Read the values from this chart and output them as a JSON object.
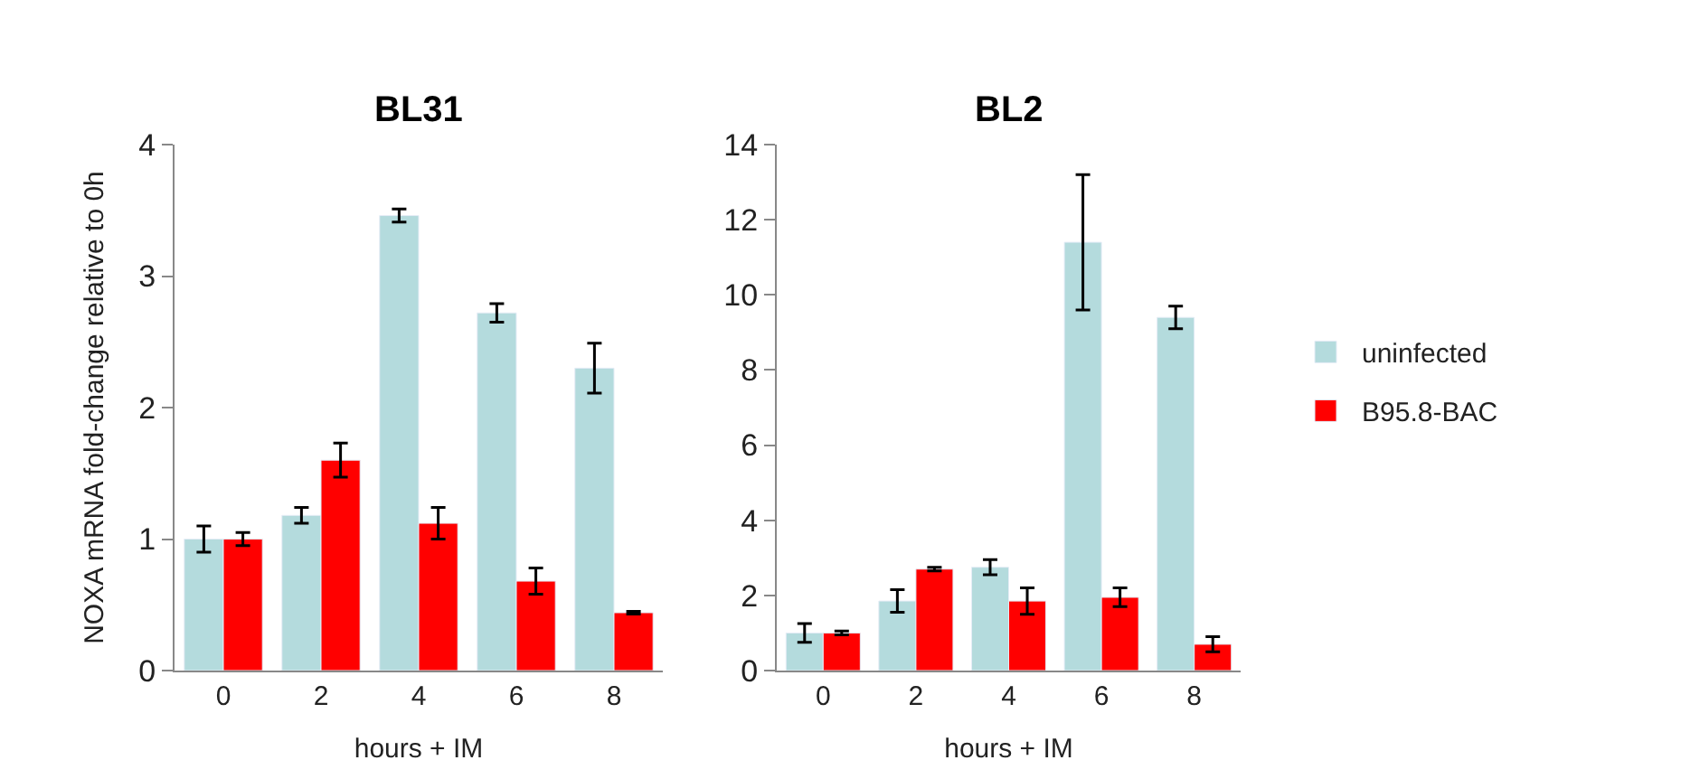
{
  "chart_data": [
    {
      "type": "bar",
      "title": "BL31",
      "xlabel": "hours + IM",
      "ylabel": "NOXA mRNA fold-change relative to 0h",
      "categories": [
        "0",
        "2",
        "4",
        "6",
        "8"
      ],
      "ylim": [
        0,
        4
      ],
      "yticks": [
        0,
        1,
        2,
        3,
        4
      ],
      "series": [
        {
          "color": "#b4dbdd",
          "values": [
            1.0,
            1.18,
            3.46,
            2.72,
            2.3
          ],
          "errors": [
            0.1,
            0.06,
            0.05,
            0.07,
            0.19
          ]
        },
        {
          "color": "#ff0000",
          "values": [
            1.0,
            1.6,
            1.12,
            0.68,
            0.44
          ],
          "errors": [
            0.05,
            0.13,
            0.12,
            0.1,
            0.01
          ]
        }
      ]
    },
    {
      "type": "bar",
      "title": "BL2",
      "xlabel": "hours + IM",
      "categories": [
        "0",
        "2",
        "4",
        "6",
        "8"
      ],
      "ylim": [
        0,
        14
      ],
      "yticks": [
        0,
        2,
        4,
        6,
        8,
        10,
        12,
        14
      ],
      "legend": "right",
      "series": [
        {
          "name": "uninfected",
          "color": "#b4dbdd",
          "values": [
            1.0,
            1.85,
            2.75,
            11.4,
            9.4
          ],
          "errors": [
            0.25,
            0.3,
            0.2,
            1.8,
            0.3
          ]
        },
        {
          "name": "B95.8-BAC",
          "color": "#ff0000",
          "values": [
            1.0,
            2.7,
            1.85,
            1.95,
            0.7
          ],
          "errors": [
            0.05,
            0.05,
            0.35,
            0.25,
            0.2
          ]
        }
      ]
    }
  ]
}
